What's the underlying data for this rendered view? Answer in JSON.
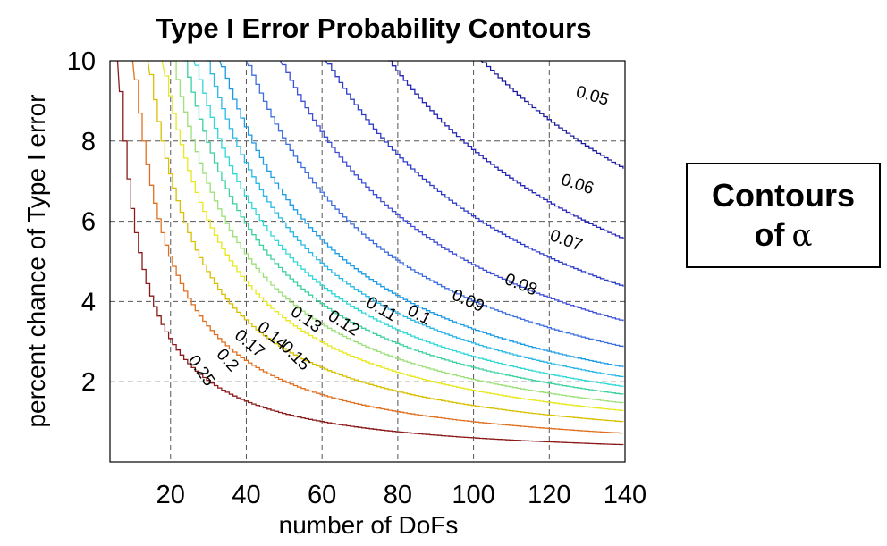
{
  "chart_data": {
    "type": "contour",
    "title": "Type I Error Probability Contours",
    "xlabel": "number of DoFs",
    "ylabel": "percent chance of Type I error",
    "xlim": [
      4,
      140
    ],
    "ylim": [
      0,
      10
    ],
    "xticks": [
      20,
      40,
      60,
      80,
      100,
      120,
      140
    ],
    "yticks": [
      2,
      4,
      6,
      8,
      10
    ],
    "grid": true,
    "contours": [
      {
        "level": "0.25",
        "color": "#8b1a1a",
        "k": 60
      },
      {
        "level": "0.2",
        "color": "#e07020",
        "k": 100
      },
      {
        "level": "0.17",
        "color": "#d8c000",
        "k": 140
      },
      {
        "level": "0.15",
        "color": "#e8e820",
        "k": 178
      },
      {
        "level": "0.14",
        "color": "#9ee07a",
        "k": 205
      },
      {
        "level": "0.13",
        "color": "#3cd2a0",
        "k": 235
      },
      {
        "level": "0.12",
        "color": "#30d8d8",
        "k": 262
      },
      {
        "level": "0.11",
        "color": "#2ab8e8",
        "k": 295
      },
      {
        "level": "0.1",
        "color": "#1a9be8",
        "k": 330
      },
      {
        "level": "0.09",
        "color": "#3d6ee0",
        "k": 400
      },
      {
        "level": "0.08",
        "color": "#3f50d8",
        "k": 490
      },
      {
        "level": "0.07",
        "color": "#2d3cc8",
        "k": 610
      },
      {
        "level": "0.06",
        "color": "#2828b8",
        "k": 775
      },
      {
        "level": "0.05",
        "color": "#1a1aa0",
        "k": 1020
      }
    ]
  },
  "note": {
    "line1": "Contours",
    "line2": "of",
    "symbol": "α"
  }
}
